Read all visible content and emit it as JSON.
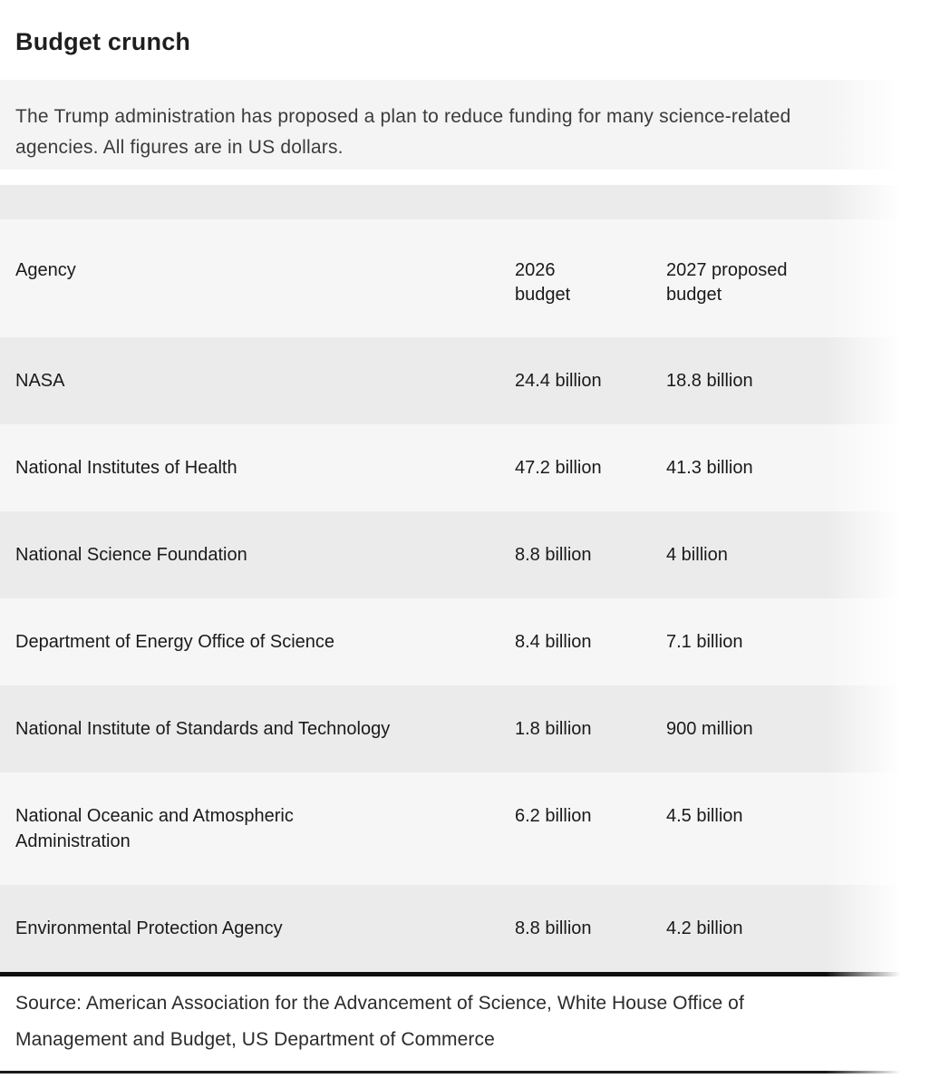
{
  "title": "Budget crunch",
  "description": "The Trump administration has proposed a plan to reduce funding for many science-related\nagencies. All figures are in US dollars.",
  "table": {
    "columns": [
      "Agency",
      "2026\nbudget",
      "2027 proposed\nbudget"
    ],
    "rows": [
      {
        "agency": "NASA",
        "budget_2026": "24.4 billion",
        "budget_2027": "18.8 billion"
      },
      {
        "agency": "National Institutes of Health",
        "budget_2026": "47.2 billion",
        "budget_2027": "41.3 billion"
      },
      {
        "agency": "National Science Foundation",
        "budget_2026": "8.8 billion",
        "budget_2027": "4 billion"
      },
      {
        "agency": "Department of Energy Office of Science",
        "budget_2026": "8.4 billion",
        "budget_2027": "7.1 billion"
      },
      {
        "agency": "National Institute of Standards and Technology",
        "budget_2026": "1.8 billion",
        "budget_2027": "900 million"
      },
      {
        "agency": "National Oceanic and Atmospheric\nAdministration",
        "budget_2026": "6.2 billion",
        "budget_2027": "4.5 billion"
      },
      {
        "agency": "Environmental Protection Agency",
        "budget_2026": "8.8 billion",
        "budget_2027": "4.2 billion"
      }
    ]
  },
  "source": "Source: American Association for the Advancement of Science, White House Office of\nManagement and Budget, US Department of Commerce",
  "colors": {
    "row_dark": "#ebebeb",
    "row_light": "#f6f6f6",
    "description_band": "#f4f4f4",
    "thick_rule": "#0f0f0f",
    "bottom_rule": "#1a1a1a",
    "title_text": "#1e1e1e",
    "body_text": "#1a1a1a"
  },
  "chart_data": {
    "type": "table",
    "title": "Budget crunch",
    "subtitle": "The Trump administration has proposed a plan to reduce funding for many science-related agencies. All figures are in US dollars.",
    "columns": [
      "Agency",
      "2026 budget",
      "2027 proposed budget"
    ],
    "rows": [
      [
        "NASA",
        "24.4 billion",
        "18.8 billion"
      ],
      [
        "National Institutes of Health",
        "47.2 billion",
        "41.3 billion"
      ],
      [
        "National Science Foundation",
        "8.8 billion",
        "4 billion"
      ],
      [
        "Department of Energy Office of Science",
        "8.4 billion",
        "7.1 billion"
      ],
      [
        "National Institute of Standards and Technology",
        "1.8 billion",
        "900 million"
      ],
      [
        "National Oceanic and Atmospheric Administration",
        "6.2 billion",
        "4.5 billion"
      ],
      [
        "Environmental Protection Agency",
        "8.8 billion",
        "4.2 billion"
      ]
    ],
    "source": "Source: American Association for the Advancement of Science, White House Office of Management and Budget, US Department of Commerce"
  }
}
